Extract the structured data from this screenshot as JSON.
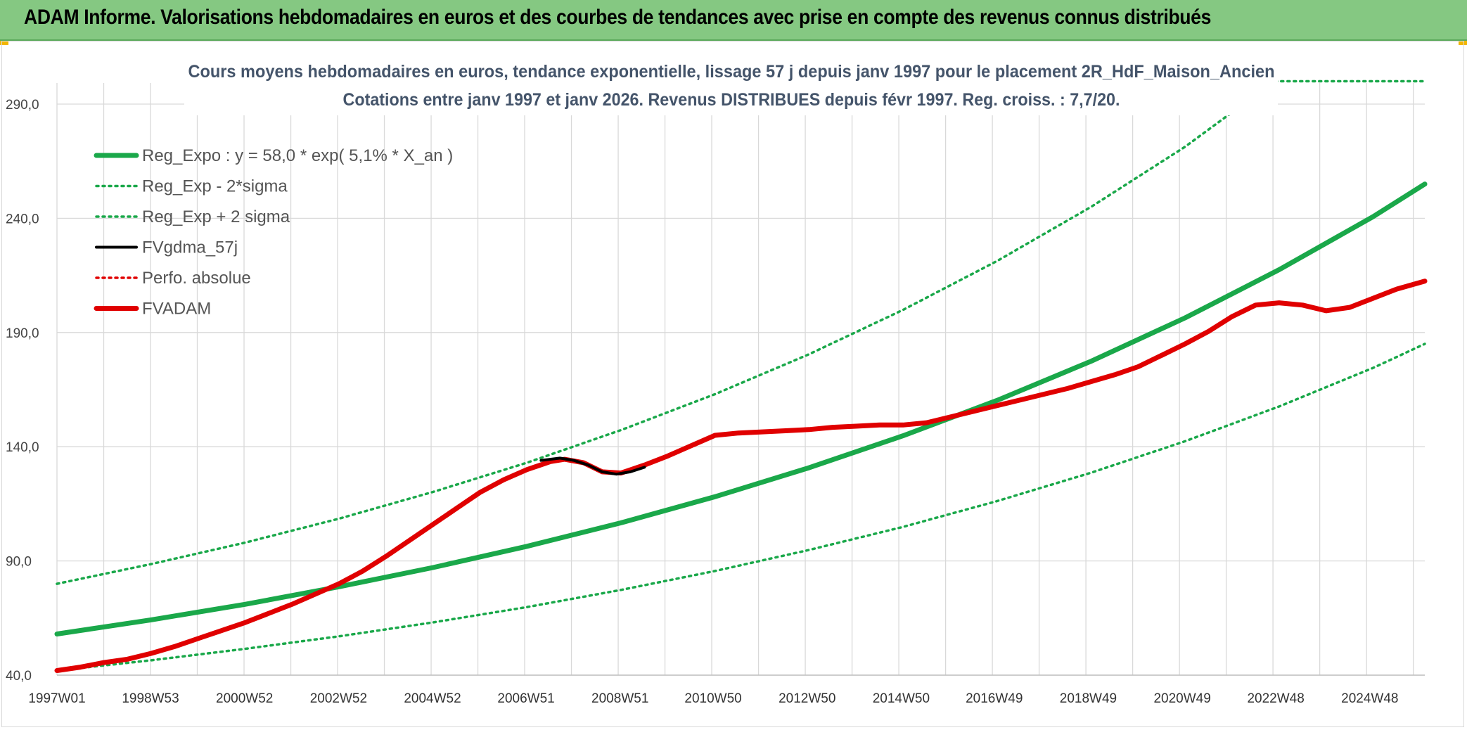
{
  "header": {
    "title": "ADAM Informe. Valorisations hebdomadaires en euros et des courbes de tendances avec prise en compte des revenus connus distribués"
  },
  "colors": {
    "banner": "#85c882",
    "reg_expo": "#1aa84a",
    "sigma": "#1aa84a",
    "fvgdma": "#000000",
    "perfo": "#e00000",
    "fvadam": "#e00000",
    "grid": "#d9d9d9"
  },
  "chart_data": {
    "type": "line",
    "title": "Cours moyens hebdomadaires en euros, tendance exponentielle, lissage 57 j depuis janv 1997 pour le placement 2R_HdF_Maison_Ancien",
    "subtitle": "Cotations entre janv 1997 et janv 2026. Revenus DISTRIBUES depuis févr 1997. Reg. croiss. : 7,7/20.",
    "xlabel": "",
    "ylabel": "",
    "ylim": [
      40,
      290
    ],
    "yticks": [
      "290,0",
      "240,0",
      "190,0",
      "140,0",
      "90,0",
      "40,0"
    ],
    "xlim": [
      1997.0,
      2026.1
    ],
    "xticks": [
      {
        "label": "1997W01",
        "x": 1997.0
      },
      {
        "label": "1998W53",
        "x": 1998.99
      },
      {
        "label": "2000W52",
        "x": 2000.99
      },
      {
        "label": "2002W52",
        "x": 2002.99
      },
      {
        "label": "2004W52",
        "x": 2004.99
      },
      {
        "label": "2006W51",
        "x": 2006.98
      },
      {
        "label": "2008W51",
        "x": 2008.98
      },
      {
        "label": "2010W50",
        "x": 2010.96
      },
      {
        "label": "2012W50",
        "x": 2012.96
      },
      {
        "label": "2014W50",
        "x": 2014.96
      },
      {
        "label": "2016W49",
        "x": 2016.94
      },
      {
        "label": "2018W49",
        "x": 2018.94
      },
      {
        "label": "2020W49",
        "x": 2020.94
      },
      {
        "label": "2022W48",
        "x": 2022.93
      },
      {
        "label": "2024W48",
        "x": 2024.93
      }
    ],
    "grid": true,
    "legend_position": "top-left",
    "series": [
      {
        "name": "Reg_Expo : y = 58,0 * exp( 5,1% *  X_an )",
        "style": "thick-solid",
        "color": "#1aa84a",
        "x": [
          1997,
          1999,
          2001,
          2003,
          2005,
          2007,
          2009,
          2011,
          2013,
          2015,
          2017,
          2019,
          2021,
          2023,
          2025,
          2026.1
        ],
        "y": [
          58.0,
          64.2,
          71.0,
          78.7,
          87.1,
          96.4,
          106.7,
          118.1,
          130.8,
          144.8,
          160.3,
          177.4,
          196.4,
          217.5,
          240.7,
          255.0
        ]
      },
      {
        "name": "Reg_Exp - 2*sigma",
        "style": "dotted",
        "color": "#1aa84a",
        "x": [
          1997,
          1999,
          2001,
          2003,
          2005,
          2007,
          2009,
          2011,
          2013,
          2015,
          2017,
          2019,
          2021,
          2023,
          2025,
          2026.1
        ],
        "y": [
          42.0,
          46.5,
          51.5,
          57.0,
          63.1,
          69.8,
          77.3,
          85.6,
          94.8,
          104.9,
          116.2,
          128.6,
          142.4,
          157.6,
          174.5,
          185.0
        ]
      },
      {
        "name": "Reg_Exp + 2 sigma",
        "style": "dotted",
        "color": "#1aa84a",
        "x": [
          1997,
          1999,
          2001,
          2003,
          2005,
          2007,
          2009,
          2011,
          2013,
          2015,
          2017,
          2019,
          2021,
          2022.9,
          2026.1
        ],
        "y": [
          80.0,
          88.6,
          98.0,
          108.5,
          120.2,
          133.0,
          147.3,
          163.0,
          180.5,
          199.9,
          221.3,
          245.0,
          271.3,
          300.0,
          300.0
        ]
      },
      {
        "name": "FVgdma_57j",
        "style": "solid",
        "color": "#000000",
        "x": [
          2007.3,
          2007.7,
          2008.0,
          2008.3,
          2008.6,
          2008.9,
          2009.2,
          2009.5
        ],
        "y": [
          134.0,
          135.0,
          134.0,
          132.0,
          129.0,
          128.0,
          129.0,
          131.0
        ]
      },
      {
        "name": "Perfo. absolue",
        "style": "dotted",
        "color": "#e00000",
        "x": [],
        "y": []
      },
      {
        "name": "FVADAM",
        "style": "thick-solid",
        "color": "#e00000",
        "x": [
          1997.0,
          1997.5,
          1998.0,
          1998.5,
          1999.0,
          1999.5,
          2000.0,
          2000.5,
          2001.0,
          2001.5,
          2002.0,
          2002.5,
          2003.0,
          2003.5,
          2004.0,
          2004.5,
          2005.0,
          2005.5,
          2006.0,
          2006.5,
          2007.0,
          2007.5,
          2007.8,
          2008.2,
          2008.6,
          2009.0,
          2009.5,
          2010.0,
          2010.5,
          2011.0,
          2011.5,
          2012.0,
          2012.5,
          2013.0,
          2013.5,
          2014.0,
          2014.5,
          2015.0,
          2015.5,
          2016.0,
          2016.5,
          2017.0,
          2017.5,
          2018.0,
          2018.5,
          2019.0,
          2019.5,
          2020.0,
          2020.5,
          2021.0,
          2021.5,
          2022.0,
          2022.5,
          2023.0,
          2023.5,
          2024.0,
          2024.5,
          2025.0,
          2025.5,
          2026.1
        ],
        "y": [
          42.0,
          43.5,
          45.5,
          47.0,
          49.5,
          52.5,
          56.0,
          59.5,
          63.0,
          67.0,
          71.0,
          75.5,
          80.0,
          85.5,
          92.0,
          99.0,
          106.0,
          113.0,
          120.0,
          125.5,
          130.0,
          133.5,
          134.5,
          133.0,
          129.0,
          128.5,
          132.0,
          136.0,
          140.5,
          145.0,
          146.0,
          146.5,
          147.0,
          147.5,
          148.5,
          149.0,
          149.5,
          149.5,
          150.5,
          153.0,
          155.5,
          158.0,
          160.5,
          163.0,
          165.5,
          168.5,
          171.5,
          175.0,
          180.0,
          185.0,
          190.5,
          197.0,
          202.0,
          203.0,
          202.0,
          199.5,
          201.0,
          205.0,
          209.0,
          212.5
        ]
      }
    ]
  }
}
